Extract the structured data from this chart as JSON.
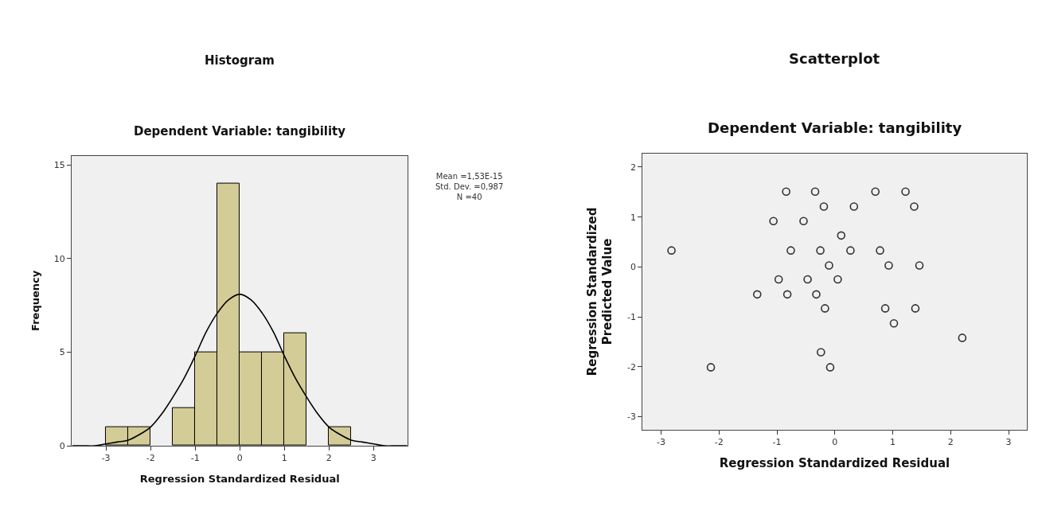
{
  "chart_data": [
    {
      "type": "histogram",
      "title": "Histogram",
      "subtitle": "Dependent Variable: tangibility",
      "xlabel": "Regression Standardized Residual",
      "ylabel": "Frequency",
      "annotations": [
        "Mean =1,53E-15\nStd. Dev. =0,987\nN =40"
      ],
      "bins": [
        -3,
        -2.5,
        -2,
        -1.5,
        -1,
        -0.5,
        0,
        0.5,
        1,
        1.5,
        2,
        2.5
      ],
      "values": [
        1,
        1,
        0,
        2,
        5,
        14,
        5,
        5,
        6,
        0,
        1
      ],
      "color": "#d4cc96",
      "series": [
        {
          "type": "line",
          "color": "#000000",
          "x": [
            -3.75,
            -3.5,
            -3.25,
            -3,
            -2.75,
            -2.5,
            -2.25,
            -2,
            -1.75,
            -1.5,
            -1.25,
            -1,
            -0.75,
            -0.5,
            -0.25,
            0,
            0.25,
            0.5,
            0.75,
            1,
            1.25,
            1.5,
            1.75,
            2,
            2.25,
            2.5,
            2.75,
            3,
            3.25,
            3.5,
            3.75
          ],
          "values": [
            0.0,
            0.0,
            0.0,
            0.1,
            0.2,
            0.3,
            0.6,
            1.0,
            1.7,
            2.6,
            3.6,
            4.8,
            6.1,
            7.1,
            7.8,
            8.1,
            7.8,
            7.1,
            6.1,
            4.8,
            3.6,
            2.6,
            1.7,
            1.0,
            0.6,
            0.3,
            0.2,
            0.1,
            0.0,
            0.0,
            0.0
          ]
        }
      ],
      "xlim": [
        -3.77,
        3.77
      ],
      "xticks": [
        -3,
        -2,
        -1,
        0,
        1,
        2,
        3
      ],
      "ylim": [
        0,
        15.5
      ],
      "yticks": [
        0,
        5,
        10,
        15
      ]
    },
    {
      "type": "scatter",
      "title": "Scatterplot",
      "subtitle": "Dependent Variable: tangibility",
      "xlabel": "Regression Standardized Residual",
      "ylabel": "Regression Standardized\nPredicted Value",
      "x": [
        -2.82,
        -2.14,
        -1.34,
        -1.06,
        -0.97,
        -0.84,
        -0.82,
        -0.76,
        -0.54,
        -0.47,
        -0.34,
        -0.32,
        -0.25,
        -0.24,
        -0.19,
        -0.17,
        -0.1,
        -0.08,
        0.05,
        0.11,
        0.27,
        0.33,
        0.7,
        0.78,
        0.87,
        0.93,
        1.02,
        1.22,
        1.37,
        1.39,
        1.46,
        2.2
      ],
      "values": [
        0.33,
        -2.01,
        -0.55,
        0.92,
        -0.25,
        1.51,
        -0.55,
        0.33,
        0.92,
        -0.25,
        1.51,
        -0.55,
        0.33,
        -1.71,
        1.21,
        -0.83,
        0.03,
        -2.01,
        -0.25,
        0.63,
        0.33,
        1.21,
        1.51,
        0.33,
        -0.83,
        0.03,
        -1.13,
        1.51,
        1.21,
        -0.83,
        0.03,
        -1.42
      ],
      "color": "#333333",
      "marker": "circle",
      "xlim": [
        -3.32,
        3.31
      ],
      "xticks": [
        -3,
        -2,
        -1,
        0,
        1,
        2,
        3
      ],
      "ylim": [
        -3.26,
        2.27
      ],
      "yticks": [
        -3,
        -2,
        -1,
        0,
        1,
        2
      ]
    }
  ]
}
